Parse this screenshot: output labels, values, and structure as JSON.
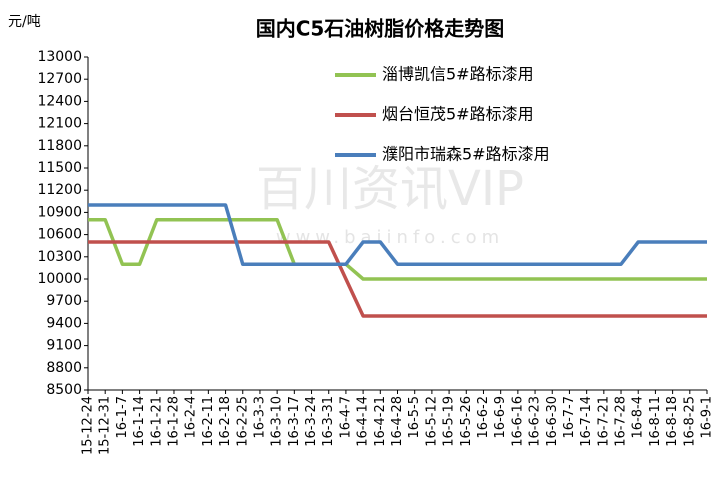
{
  "chart_data": {
    "type": "line",
    "title": "国内C5石油树脂价格走势图",
    "y_axis_label": "元/吨",
    "watermark": [
      "百川资讯VIP",
      "www.baiinfo.com"
    ],
    "categories": [
      "15-12-24",
      "15-12-31",
      "16-1-7",
      "16-1-14",
      "16-1-21",
      "16-1-28",
      "16-2-4",
      "16-2-11",
      "16-2-18",
      "16-2-25",
      "16-3-3",
      "16-3-10",
      "16-3-17",
      "16-3-24",
      "16-3-31",
      "16-4-7",
      "16-4-14",
      "16-4-21",
      "16-4-28",
      "16-5-5",
      "16-5-12",
      "16-5-19",
      "16-5-26",
      "16-6-2",
      "16-6-9",
      "16-6-16",
      "16-6-23",
      "16-6-30",
      "16-7-7",
      "16-7-14",
      "16-7-21",
      "16-7-28",
      "16-8-4",
      "16-8-11",
      "16-8-18",
      "16-8-25",
      "16-9-1"
    ],
    "series": [
      {
        "name": "淄博凯信5#路标漆用",
        "color": "#92c353",
        "values": [
          10800,
          10800,
          10200,
          10200,
          10800,
          10800,
          10800,
          10800,
          10800,
          10800,
          10800,
          10800,
          10200,
          10200,
          10200,
          10200,
          10000,
          10000,
          10000,
          10000,
          10000,
          10000,
          10000,
          10000,
          10000,
          10000,
          10000,
          10000,
          10000,
          10000,
          10000,
          10000,
          10000,
          10000,
          10000,
          10000,
          10000
        ]
      },
      {
        "name": "烟台恒茂5#路标漆用",
        "color": "#c0504d",
        "values": [
          10500,
          10500,
          10500,
          10500,
          10500,
          10500,
          10500,
          10500,
          10500,
          10500,
          10500,
          10500,
          10500,
          10500,
          10500,
          10000,
          9500,
          9500,
          9500,
          9500,
          9500,
          9500,
          9500,
          9500,
          9500,
          9500,
          9500,
          9500,
          9500,
          9500,
          9500,
          9500,
          9500,
          9500,
          9500,
          9500,
          9500
        ]
      },
      {
        "name": "濮阳市瑞森5#路标漆用",
        "color": "#4a7ebb",
        "values": [
          11000,
          11000,
          11000,
          11000,
          11000,
          11000,
          11000,
          11000,
          11000,
          10200,
          10200,
          10200,
          10200,
          10200,
          10200,
          10200,
          10500,
          10500,
          10200,
          10200,
          10200,
          10200,
          10200,
          10200,
          10200,
          10200,
          10200,
          10200,
          10200,
          10200,
          10200,
          10200,
          10500,
          10500,
          10500,
          10500,
          10500
        ]
      }
    ],
    "ylim": [
      8500,
      13000
    ],
    "yticks": [
      8500,
      8800,
      9100,
      9400,
      9700,
      10000,
      10300,
      10600,
      10900,
      11200,
      11500,
      11800,
      12100,
      12400,
      12700,
      13000
    ],
    "grid": false
  }
}
